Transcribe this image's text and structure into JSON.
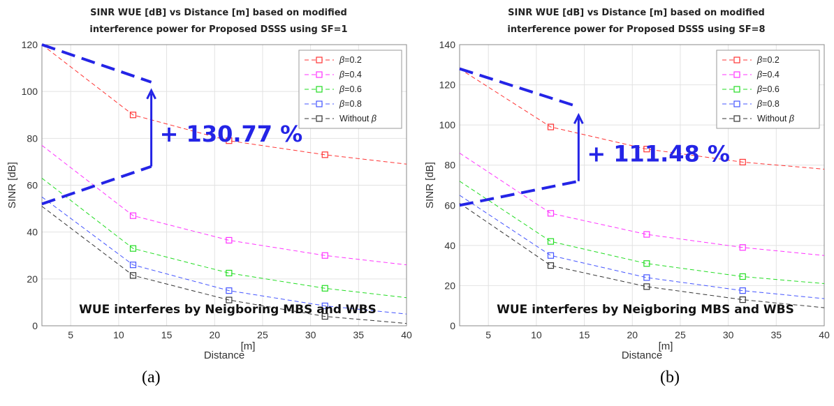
{
  "captions": [
    "(a)",
    "(b)"
  ],
  "chart_data": [
    {
      "type": "line",
      "title": "SINR WUE [dB] vs Distance [m] based on modified",
      "subtitle": "interference power for Proposed DSSS using SF=1",
      "xlabel": "Distance",
      "xunit_label": "[m]",
      "ylabel": "SINR [dB]",
      "xlim": [
        2,
        40
      ],
      "ylim": [
        0,
        120
      ],
      "xticks": [
        5,
        10,
        15,
        20,
        25,
        30,
        35,
        40
      ],
      "yticks": [
        0,
        20,
        40,
        60,
        80,
        100,
        120
      ],
      "grid": true,
      "legend_position": "top-right",
      "x": [
        2,
        11.5,
        21.5,
        31.5,
        40
      ],
      "marker_x": [
        11.5,
        21.5,
        31.5
      ],
      "series": [
        {
          "name": "=0.2",
          "symbol": "β",
          "color": "#ff3333",
          "values": [
            120,
            90,
            79,
            73,
            69
          ]
        },
        {
          "name": "=0.4",
          "symbol": "β",
          "color": "#ff33ff",
          "values": [
            77,
            47,
            36.5,
            30,
            26
          ]
        },
        {
          "name": "=0.6",
          "symbol": "β",
          "color": "#22dd22",
          "values": [
            63,
            33,
            22.5,
            16,
            12
          ]
        },
        {
          "name": "=0.8",
          "symbol": "β",
          "color": "#4455ff",
          "values": [
            55,
            26,
            15,
            8.5,
            5
          ]
        },
        {
          "name": "Without ",
          "symbol": "β",
          "color": "#333333",
          "values": [
            51,
            21.5,
            11,
            4,
            1
          ]
        }
      ],
      "annotation": "+ 130.77 %",
      "annotation_color": "#2424e6",
      "bracket": {
        "top": [
          2,
          120
        ],
        "arrow_head": [
          13.4,
          104
        ],
        "arrow_base": [
          13.4,
          68
        ],
        "bottom": [
          2,
          52
        ]
      },
      "inner_text": "WUE interferes by Neigboring MBS and WBS"
    },
    {
      "type": "line",
      "title": "SINR WUE [dB] vs Distance [m] based on modified",
      "subtitle": "interference power for Proposed DSSS using SF=8",
      "xlabel": "Distance",
      "xunit_label": "[m]",
      "ylabel": "SINR [dB]",
      "xlim": [
        2,
        40
      ],
      "ylim": [
        0,
        140
      ],
      "xticks": [
        5,
        10,
        15,
        20,
        25,
        30,
        35,
        40
      ],
      "yticks": [
        0,
        20,
        40,
        60,
        80,
        100,
        120,
        140
      ],
      "grid": true,
      "legend_position": "top-right",
      "x": [
        2,
        11.5,
        21.5,
        31.5,
        40
      ],
      "marker_x": [
        11.5,
        21.5,
        31.5
      ],
      "series": [
        {
          "name": "=0.2",
          "symbol": "β",
          "color": "#ff3333",
          "values": [
            128,
            99,
            88,
            81.5,
            78
          ]
        },
        {
          "name": "=0.4",
          "symbol": "β",
          "color": "#ff33ff",
          "values": [
            86,
            56,
            45.5,
            39,
            35
          ]
        },
        {
          "name": "=0.6",
          "symbol": "β",
          "color": "#22dd22",
          "values": [
            72,
            42,
            31,
            24.5,
            21
          ]
        },
        {
          "name": "=0.8",
          "symbol": "β",
          "color": "#4455ff",
          "values": [
            65,
            35,
            24,
            17.5,
            13.5
          ]
        },
        {
          "name": "Without ",
          "symbol": "β",
          "color": "#333333",
          "values": [
            61,
            30,
            19.5,
            13,
            9
          ]
        }
      ],
      "annotation": "+ 111.48 %",
      "annotation_color": "#2424e6",
      "bracket": {
        "top": [
          2,
          128
        ],
        "arrow_head": [
          14.4,
          109
        ],
        "arrow_base": [
          14.4,
          72
        ],
        "bottom": [
          2,
          60
        ]
      },
      "inner_text": "WUE interferes by Neigboring MBS and WBS"
    }
  ]
}
